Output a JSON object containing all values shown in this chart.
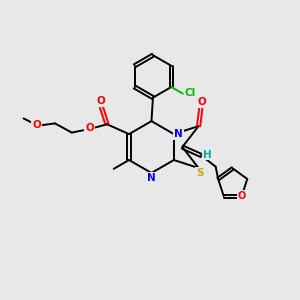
{
  "bg_color": "#e8e8e8",
  "bond_color": "#000000",
  "n_color": "#0000ff",
  "o_color": "#ff0000",
  "s_color": "#ccaa00",
  "cl_color": "#00bb00",
  "h_color": "#00aaaa",
  "figsize": [
    3.0,
    3.0
  ],
  "dpi": 100,
  "xlim": [
    0,
    10
  ],
  "ylim": [
    0,
    10
  ]
}
